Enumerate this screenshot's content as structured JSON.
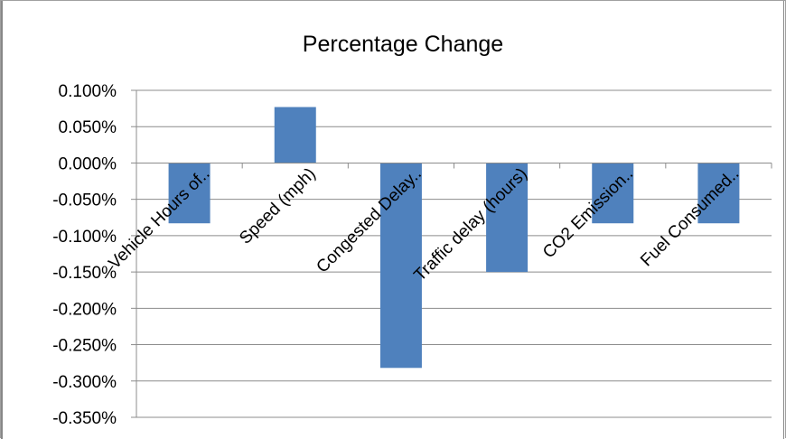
{
  "chart_data": {
    "type": "bar",
    "title": "Percentage Change",
    "categories": [
      "Vehicle Hours of..",
      "Speed (mph)",
      "Congested Delay..",
      "Traffic delay (hours)",
      "CO2 Emission..",
      "Fuel Consumed.."
    ],
    "values": [
      -0.083,
      0.077,
      -0.282,
      -0.15,
      -0.083,
      -0.083
    ],
    "value_format": "percent",
    "y_ticks": [
      "0.100%",
      "0.050%",
      "0.000%",
      "-0.050%",
      "-0.100%",
      "-0.150%",
      "-0.200%",
      "-0.250%",
      "-0.300%",
      "-0.350%"
    ],
    "ylim": [
      -0.35,
      0.1
    ],
    "xlabel": "",
    "ylabel": "",
    "grid": true,
    "legend": "none",
    "bar_color": "#4f81bd"
  }
}
